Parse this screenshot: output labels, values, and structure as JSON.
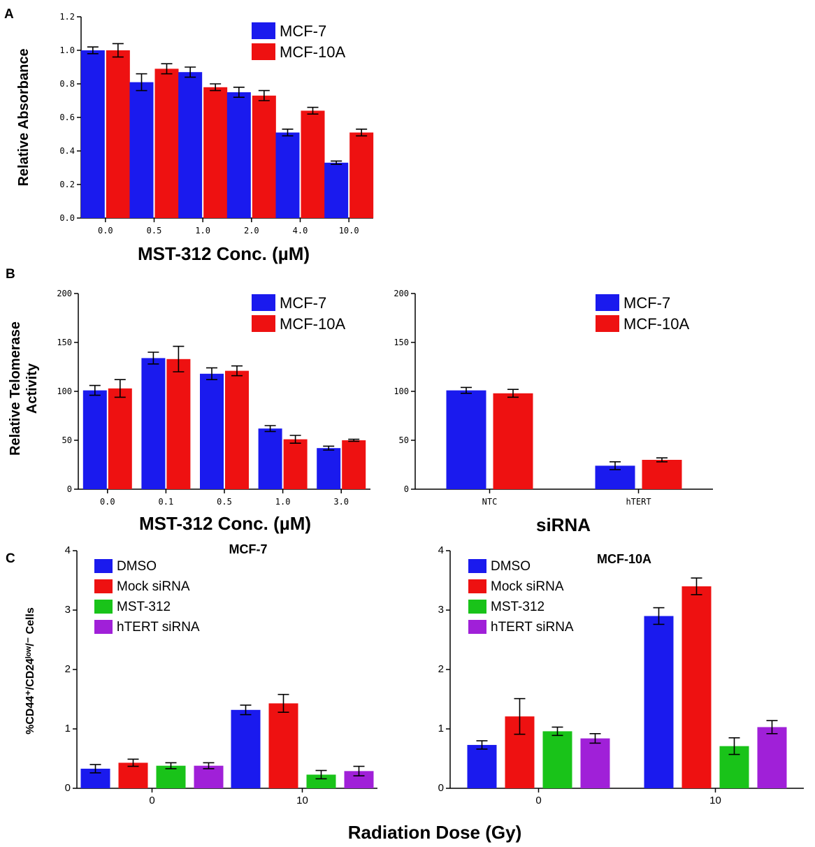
{
  "figure": {
    "panel_labels": [
      "A",
      "B",
      "C"
    ],
    "radiation_xlabel": "Radiation  Dose (Gy)"
  },
  "colors": {
    "MCF-7": "#1a1aee",
    "MCF-10A": "#ee1111",
    "DMSO": "#1a1aee",
    "Mock siRNA": "#ee1111",
    "MST-312": "#19c319",
    "hTERT siRNA": "#a020d8"
  },
  "chart_data": [
    {
      "id": "A",
      "type": "bar",
      "title": "",
      "xlabel": "MST-312 Conc. (µM)",
      "ylabel": "Relative Absorbance",
      "ylim": [
        0,
        1.2
      ],
      "yticks": [
        "0.0",
        "0.2",
        "0.4",
        "0.6",
        "0.8",
        "1.0",
        "1.2"
      ],
      "categories": [
        "0.0",
        "0.5",
        "1.0",
        "2.0",
        "4.0",
        "10.0"
      ],
      "series": [
        {
          "name": "MCF-7",
          "values": [
            1.0,
            0.81,
            0.87,
            0.75,
            0.51,
            0.33
          ],
          "errors": [
            0.02,
            0.05,
            0.03,
            0.03,
            0.02,
            0.01
          ]
        },
        {
          "name": "MCF-10A",
          "values": [
            1.0,
            0.89,
            0.78,
            0.73,
            0.64,
            0.51
          ],
          "errors": [
            0.04,
            0.03,
            0.02,
            0.03,
            0.02,
            0.02
          ]
        }
      ],
      "legend": "top-right"
    },
    {
      "id": "B1",
      "type": "bar",
      "title": "",
      "xlabel": "MST-312 Conc. (µM)",
      "ylabel": [
        "Relative Telomerase",
        "Activity"
      ],
      "ylim": [
        0,
        200
      ],
      "yticks": [
        "0",
        "50",
        "100",
        "150",
        "200"
      ],
      "categories": [
        "0.0",
        "0.1",
        "0.5",
        "1.0",
        "3.0"
      ],
      "series": [
        {
          "name": "MCF-7",
          "values": [
            101,
            134,
            118,
            62,
            42
          ],
          "errors": [
            5,
            6,
            6,
            3,
            2
          ]
        },
        {
          "name": "MCF-10A",
          "values": [
            103,
            133,
            121,
            51,
            50
          ],
          "errors": [
            9,
            13,
            5,
            4,
            1
          ]
        }
      ],
      "legend": "top-right"
    },
    {
      "id": "B2",
      "type": "bar",
      "title": "",
      "xlabel": "siRNA",
      "ylabel": "",
      "ylim": [
        0,
        200
      ],
      "yticks": [
        "0",
        "50",
        "100",
        "150",
        "200"
      ],
      "categories": [
        "NTC",
        "hTERT"
      ],
      "series": [
        {
          "name": "MCF-7",
          "values": [
            101,
            24
          ],
          "errors": [
            3,
            4
          ]
        },
        {
          "name": "MCF-10A",
          "values": [
            98,
            30
          ],
          "errors": [
            4,
            2
          ]
        }
      ],
      "legend": "top-right"
    },
    {
      "id": "C1",
      "type": "bar",
      "title": "MCF-7",
      "xlabel": "",
      "ylabel": "%CD44⁺/CD24ˡᵒʷ/⁻ Cells",
      "ylim": [
        0,
        4
      ],
      "yticks": [
        "0",
        "1",
        "2",
        "3",
        "4"
      ],
      "categories": [
        "0",
        "10"
      ],
      "series": [
        {
          "name": "DMSO",
          "values": [
            0.33,
            1.32
          ],
          "errors": [
            0.07,
            0.08
          ]
        },
        {
          "name": "Mock siRNA",
          "values": [
            0.43,
            1.43
          ],
          "errors": [
            0.06,
            0.15
          ]
        },
        {
          "name": "MST-312",
          "values": [
            0.38,
            0.23
          ],
          "errors": [
            0.05,
            0.07
          ]
        },
        {
          "name": "hTERT siRNA",
          "values": [
            0.38,
            0.29
          ],
          "errors": [
            0.05,
            0.08
          ]
        }
      ],
      "legend": "top-left"
    },
    {
      "id": "C2",
      "type": "bar",
      "title": "MCF-10A",
      "xlabel": "",
      "ylabel": "",
      "ylim": [
        0,
        4
      ],
      "yticks": [
        "0",
        "1",
        "2",
        "3",
        "4"
      ],
      "categories": [
        "0",
        "10"
      ],
      "series": [
        {
          "name": "DMSO",
          "values": [
            0.73,
            2.9
          ],
          "errors": [
            0.07,
            0.14
          ]
        },
        {
          "name": "Mock siRNA",
          "values": [
            1.21,
            3.4
          ],
          "errors": [
            0.3,
            0.14
          ]
        },
        {
          "name": "MST-312",
          "values": [
            0.96,
            0.71
          ],
          "errors": [
            0.07,
            0.14
          ]
        },
        {
          "name": "hTERT siRNA",
          "values": [
            0.84,
            1.03
          ],
          "errors": [
            0.08,
            0.11
          ]
        }
      ],
      "legend": "top-left"
    }
  ]
}
